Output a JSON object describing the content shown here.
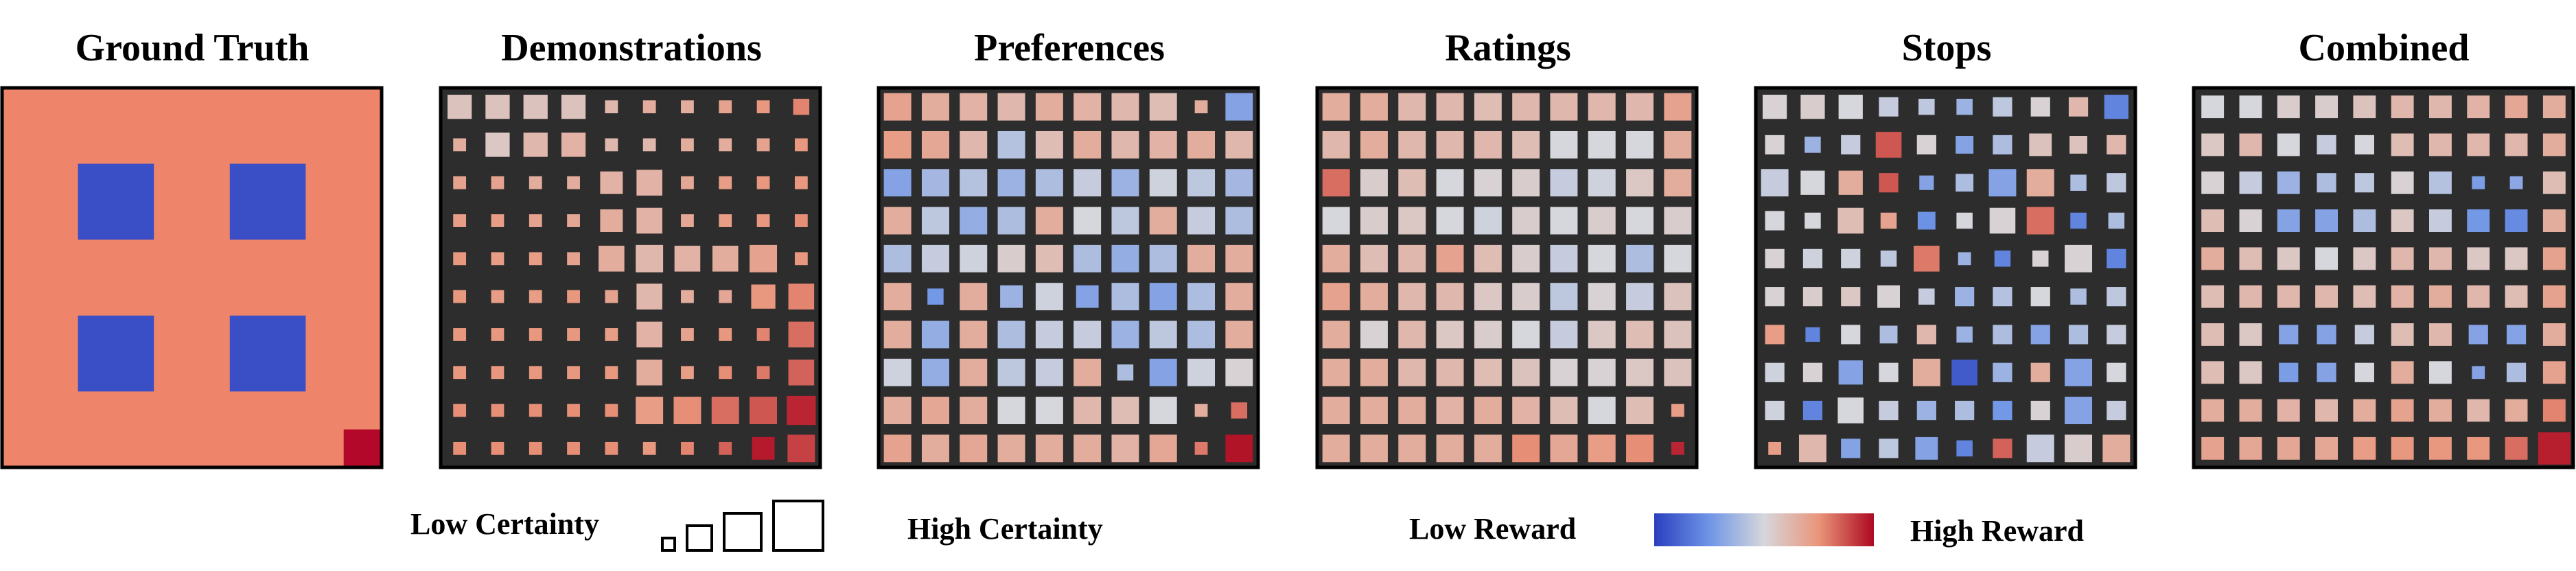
{
  "panels": [
    {
      "title": "Ground Truth",
      "type": "ground_truth",
      "grid": {
        "rows": 10,
        "cols": 10,
        "background_reward": 0.85,
        "low_reward_blocks": [
          {
            "rows": [
              2,
              3
            ],
            "cols": [
              2,
              3
            ],
            "reward": 0.0
          },
          {
            "rows": [
              2,
              3
            ],
            "cols": [
              6,
              7
            ],
            "reward": 0.0
          },
          {
            "rows": [
              6,
              7
            ],
            "cols": [
              2,
              3
            ],
            "reward": 0.0
          },
          {
            "rows": [
              6,
              7
            ],
            "cols": [
              6,
              7
            ],
            "reward": 0.0
          }
        ],
        "high_reward_cells": [
          {
            "row": 9,
            "col": 9,
            "reward": 1.0
          }
        ]
      }
    },
    {
      "title": "Demonstrations",
      "type": "estimate",
      "reward": [
        [
          0.58,
          0.58,
          0.58,
          0.58,
          0.62,
          0.66,
          0.66,
          0.7,
          0.74,
          0.78
        ],
        [
          0.66,
          0.56,
          0.62,
          0.64,
          0.62,
          0.62,
          0.66,
          0.66,
          0.7,
          0.74
        ],
        [
          0.7,
          0.7,
          0.66,
          0.66,
          0.64,
          0.64,
          0.68,
          0.72,
          0.74,
          0.74
        ],
        [
          0.72,
          0.72,
          0.7,
          0.68,
          0.66,
          0.64,
          0.68,
          0.72,
          0.74,
          0.76
        ],
        [
          0.74,
          0.72,
          0.72,
          0.7,
          0.66,
          0.62,
          0.64,
          0.66,
          0.7,
          0.74
        ],
        [
          0.74,
          0.72,
          0.72,
          0.74,
          0.7,
          0.62,
          0.66,
          0.68,
          0.74,
          0.78
        ],
        [
          0.74,
          0.74,
          0.74,
          0.74,
          0.72,
          0.64,
          0.7,
          0.74,
          0.78,
          0.82
        ],
        [
          0.74,
          0.74,
          0.74,
          0.74,
          0.74,
          0.66,
          0.72,
          0.76,
          0.8,
          0.84
        ],
        [
          0.76,
          0.76,
          0.76,
          0.76,
          0.76,
          0.72,
          0.76,
          0.82,
          0.86,
          0.95
        ],
        [
          0.76,
          0.76,
          0.76,
          0.76,
          0.76,
          0.74,
          0.78,
          0.84,
          0.97,
          0.9
        ]
      ],
      "certainty": [
        [
          0.75,
          0.75,
          0.75,
          0.75,
          0.4,
          0.4,
          0.4,
          0.4,
          0.4,
          0.5
        ],
        [
          0.4,
          0.75,
          0.75,
          0.75,
          0.4,
          0.4,
          0.4,
          0.4,
          0.4,
          0.4
        ],
        [
          0.4,
          0.4,
          0.4,
          0.4,
          0.7,
          0.8,
          0.4,
          0.4,
          0.4,
          0.4
        ],
        [
          0.4,
          0.4,
          0.4,
          0.4,
          0.7,
          0.8,
          0.4,
          0.4,
          0.4,
          0.4
        ],
        [
          0.4,
          0.4,
          0.4,
          0.4,
          0.8,
          0.85,
          0.8,
          0.8,
          0.85,
          0.4
        ],
        [
          0.4,
          0.4,
          0.4,
          0.4,
          0.4,
          0.8,
          0.4,
          0.4,
          0.75,
          0.8
        ],
        [
          0.4,
          0.4,
          0.4,
          0.4,
          0.4,
          0.8,
          0.4,
          0.4,
          0.4,
          0.8
        ],
        [
          0.4,
          0.4,
          0.4,
          0.4,
          0.4,
          0.8,
          0.4,
          0.4,
          0.4,
          0.8
        ],
        [
          0.4,
          0.4,
          0.4,
          0.4,
          0.4,
          0.85,
          0.85,
          0.85,
          0.85,
          0.9
        ],
        [
          0.4,
          0.4,
          0.4,
          0.4,
          0.4,
          0.4,
          0.4,
          0.4,
          0.7,
          0.85
        ]
      ]
    },
    {
      "title": "Preferences",
      "type": "estimate",
      "reward": [
        [
          0.7,
          0.66,
          0.64,
          0.62,
          0.66,
          0.64,
          0.62,
          0.6,
          0.66,
          0.3
        ],
        [
          0.72,
          0.68,
          0.62,
          0.42,
          0.6,
          0.66,
          0.62,
          0.64,
          0.66,
          0.62
        ],
        [
          0.3,
          0.38,
          0.42,
          0.36,
          0.4,
          0.46,
          0.36,
          0.48,
          0.44,
          0.38
        ],
        [
          0.66,
          0.44,
          0.34,
          0.4,
          0.66,
          0.5,
          0.44,
          0.66,
          0.46,
          0.4
        ],
        [
          0.4,
          0.46,
          0.48,
          0.54,
          0.6,
          0.4,
          0.34,
          0.4,
          0.66,
          0.66
        ],
        [
          0.66,
          0.26,
          0.66,
          0.36,
          0.48,
          0.3,
          0.4,
          0.3,
          0.4,
          0.66
        ],
        [
          0.66,
          0.34,
          0.66,
          0.4,
          0.46,
          0.46,
          0.36,
          0.44,
          0.4,
          0.66
        ],
        [
          0.48,
          0.34,
          0.66,
          0.44,
          0.46,
          0.66,
          0.4,
          0.3,
          0.48,
          0.52
        ],
        [
          0.66,
          0.68,
          0.66,
          0.5,
          0.5,
          0.62,
          0.6,
          0.5,
          0.66,
          0.82
        ],
        [
          0.7,
          0.66,
          0.68,
          0.66,
          0.66,
          0.66,
          0.64,
          0.68,
          0.8,
          0.98
        ]
      ],
      "certainty": [
        [
          0.85,
          0.85,
          0.85,
          0.85,
          0.85,
          0.85,
          0.85,
          0.85,
          0.4,
          0.85
        ],
        [
          0.85,
          0.85,
          0.85,
          0.85,
          0.85,
          0.85,
          0.85,
          0.85,
          0.85,
          0.85
        ],
        [
          0.85,
          0.85,
          0.85,
          0.85,
          0.85,
          0.85,
          0.85,
          0.85,
          0.85,
          0.85
        ],
        [
          0.85,
          0.85,
          0.85,
          0.85,
          0.85,
          0.85,
          0.85,
          0.85,
          0.85,
          0.85
        ],
        [
          0.85,
          0.85,
          0.85,
          0.85,
          0.85,
          0.85,
          0.85,
          0.85,
          0.85,
          0.85
        ],
        [
          0.85,
          0.5,
          0.85,
          0.7,
          0.85,
          0.7,
          0.85,
          0.85,
          0.85,
          0.85
        ],
        [
          0.85,
          0.85,
          0.85,
          0.85,
          0.85,
          0.85,
          0.85,
          0.85,
          0.85,
          0.85
        ],
        [
          0.85,
          0.85,
          0.85,
          0.85,
          0.85,
          0.85,
          0.5,
          0.85,
          0.85,
          0.85
        ],
        [
          0.85,
          0.85,
          0.85,
          0.85,
          0.85,
          0.85,
          0.85,
          0.85,
          0.4,
          0.5
        ],
        [
          0.85,
          0.85,
          0.85,
          0.85,
          0.85,
          0.85,
          0.85,
          0.85,
          0.4,
          0.85
        ]
      ]
    },
    {
      "title": "Ratings",
      "type": "estimate",
      "reward": [
        [
          0.66,
          0.66,
          0.62,
          0.62,
          0.6,
          0.62,
          0.62,
          0.62,
          0.62,
          0.7
        ],
        [
          0.62,
          0.66,
          0.62,
          0.62,
          0.62,
          0.6,
          0.5,
          0.5,
          0.5,
          0.66
        ],
        [
          0.82,
          0.54,
          0.6,
          0.5,
          0.52,
          0.54,
          0.46,
          0.48,
          0.56,
          0.66
        ],
        [
          0.5,
          0.54,
          0.56,
          0.5,
          0.48,
          0.54,
          0.5,
          0.54,
          0.5,
          0.54
        ],
        [
          0.66,
          0.6,
          0.62,
          0.7,
          0.6,
          0.54,
          0.46,
          0.5,
          0.4,
          0.5
        ],
        [
          0.7,
          0.66,
          0.62,
          0.62,
          0.56,
          0.54,
          0.44,
          0.52,
          0.46,
          0.58
        ],
        [
          0.66,
          0.52,
          0.62,
          0.56,
          0.54,
          0.5,
          0.46,
          0.56,
          0.6,
          0.58
        ],
        [
          0.66,
          0.66,
          0.62,
          0.62,
          0.6,
          0.58,
          0.52,
          0.52,
          0.56,
          0.58
        ],
        [
          0.66,
          0.66,
          0.66,
          0.64,
          0.66,
          0.64,
          0.6,
          0.5,
          0.6,
          0.72
        ],
        [
          0.66,
          0.66,
          0.66,
          0.66,
          0.66,
          0.76,
          0.68,
          0.72,
          0.76,
          0.95
        ]
      ],
      "certainty": [
        [
          0.85,
          0.85,
          0.85,
          0.85,
          0.85,
          0.85,
          0.85,
          0.85,
          0.85,
          0.85
        ],
        [
          0.85,
          0.85,
          0.85,
          0.85,
          0.85,
          0.85,
          0.85,
          0.85,
          0.85,
          0.85
        ],
        [
          0.85,
          0.85,
          0.85,
          0.85,
          0.85,
          0.85,
          0.85,
          0.85,
          0.85,
          0.85
        ],
        [
          0.85,
          0.85,
          0.85,
          0.85,
          0.85,
          0.85,
          0.85,
          0.85,
          0.85,
          0.85
        ],
        [
          0.85,
          0.85,
          0.85,
          0.85,
          0.85,
          0.85,
          0.85,
          0.85,
          0.85,
          0.85
        ],
        [
          0.85,
          0.85,
          0.85,
          0.85,
          0.85,
          0.85,
          0.85,
          0.85,
          0.85,
          0.85
        ],
        [
          0.85,
          0.85,
          0.85,
          0.85,
          0.85,
          0.85,
          0.85,
          0.85,
          0.85,
          0.85
        ],
        [
          0.85,
          0.85,
          0.85,
          0.85,
          0.85,
          0.85,
          0.85,
          0.85,
          0.85,
          0.85
        ],
        [
          0.85,
          0.85,
          0.85,
          0.85,
          0.85,
          0.85,
          0.85,
          0.85,
          0.85,
          0.4
        ],
        [
          0.85,
          0.85,
          0.85,
          0.85,
          0.85,
          0.85,
          0.85,
          0.85,
          0.85,
          0.4
        ]
      ]
    },
    {
      "title": "Stops",
      "type": "estimate",
      "reward": [
        [
          0.52,
          0.54,
          0.5,
          0.46,
          0.44,
          0.36,
          0.44,
          0.52,
          0.62,
          0.2
        ],
        [
          0.52,
          0.36,
          0.46,
          0.86,
          0.52,
          0.3,
          0.4,
          0.58,
          0.58,
          0.62
        ],
        [
          0.46,
          0.5,
          0.66,
          0.86,
          0.3,
          0.4,
          0.3,
          0.66,
          0.4,
          0.44
        ],
        [
          0.5,
          0.5,
          0.6,
          0.7,
          0.24,
          0.5,
          0.52,
          0.82,
          0.2,
          0.4
        ],
        [
          0.52,
          0.48,
          0.48,
          0.44,
          0.8,
          0.36,
          0.2,
          0.52,
          0.52,
          0.2
        ],
        [
          0.52,
          0.54,
          0.56,
          0.52,
          0.46,
          0.36,
          0.42,
          0.5,
          0.4,
          0.44
        ],
        [
          0.72,
          0.2,
          0.5,
          0.4,
          0.62,
          0.36,
          0.4,
          0.3,
          0.4,
          0.46
        ],
        [
          0.48,
          0.52,
          0.3,
          0.5,
          0.66,
          0.08,
          0.36,
          0.66,
          0.3,
          0.5
        ],
        [
          0.48,
          0.2,
          0.5,
          0.46,
          0.36,
          0.4,
          0.26,
          0.52,
          0.3,
          0.46
        ],
        [
          0.72,
          0.62,
          0.3,
          0.44,
          0.3,
          0.2,
          0.84,
          0.46,
          0.54,
          0.66
        ]
      ],
      "certainty": [
        [
          0.75,
          0.75,
          0.75,
          0.6,
          0.5,
          0.5,
          0.6,
          0.6,
          0.6,
          0.75
        ],
        [
          0.6,
          0.5,
          0.6,
          0.8,
          0.6,
          0.55,
          0.6,
          0.7,
          0.55,
          0.6
        ],
        [
          0.85,
          0.75,
          0.75,
          0.6,
          0.45,
          0.55,
          0.85,
          0.85,
          0.5,
          0.6
        ],
        [
          0.6,
          0.5,
          0.8,
          0.5,
          0.55,
          0.5,
          0.8,
          0.85,
          0.5,
          0.5
        ],
        [
          0.6,
          0.6,
          0.6,
          0.5,
          0.8,
          0.4,
          0.5,
          0.5,
          0.85,
          0.6
        ],
        [
          0.6,
          0.6,
          0.6,
          0.7,
          0.5,
          0.6,
          0.6,
          0.6,
          0.5,
          0.6
        ],
        [
          0.6,
          0.45,
          0.6,
          0.55,
          0.6,
          0.5,
          0.6,
          0.6,
          0.6,
          0.6
        ],
        [
          0.6,
          0.6,
          0.75,
          0.6,
          0.85,
          0.8,
          0.6,
          0.6,
          0.85,
          0.6
        ],
        [
          0.6,
          0.6,
          0.8,
          0.6,
          0.6,
          0.6,
          0.6,
          0.6,
          0.85,
          0.6
        ],
        [
          0.4,
          0.85,
          0.6,
          0.6,
          0.7,
          0.5,
          0.6,
          0.85,
          0.85,
          0.85
        ]
      ]
    },
    {
      "title": "Combined",
      "type": "estimate",
      "reward": [
        [
          0.5,
          0.5,
          0.54,
          0.54,
          0.58,
          0.62,
          0.62,
          0.64,
          0.68,
          0.66
        ],
        [
          0.56,
          0.62,
          0.5,
          0.46,
          0.5,
          0.6,
          0.62,
          0.62,
          0.62,
          0.66
        ],
        [
          0.52,
          0.46,
          0.36,
          0.4,
          0.44,
          0.52,
          0.42,
          0.28,
          0.32,
          0.6
        ],
        [
          0.6,
          0.52,
          0.3,
          0.3,
          0.4,
          0.56,
          0.46,
          0.26,
          0.22,
          0.66
        ],
        [
          0.66,
          0.6,
          0.56,
          0.5,
          0.56,
          0.62,
          0.62,
          0.56,
          0.56,
          0.7
        ],
        [
          0.6,
          0.62,
          0.62,
          0.62,
          0.6,
          0.64,
          0.66,
          0.62,
          0.6,
          0.7
        ],
        [
          0.6,
          0.56,
          0.3,
          0.3,
          0.46,
          0.6,
          0.62,
          0.3,
          0.3,
          0.66
        ],
        [
          0.6,
          0.56,
          0.28,
          0.3,
          0.5,
          0.66,
          0.5,
          0.3,
          0.4,
          0.7
        ],
        [
          0.66,
          0.66,
          0.64,
          0.62,
          0.66,
          0.7,
          0.66,
          0.62,
          0.66,
          0.78
        ],
        [
          0.7,
          0.68,
          0.68,
          0.68,
          0.72,
          0.74,
          0.74,
          0.74,
          0.82,
          0.96
        ]
      ],
      "certainty": [
        [
          0.7,
          0.7,
          0.7,
          0.7,
          0.7,
          0.7,
          0.7,
          0.7,
          0.7,
          0.7
        ],
        [
          0.7,
          0.7,
          0.7,
          0.6,
          0.6,
          0.7,
          0.7,
          0.7,
          0.7,
          0.7
        ],
        [
          0.7,
          0.7,
          0.7,
          0.6,
          0.6,
          0.7,
          0.7,
          0.4,
          0.4,
          0.7
        ],
        [
          0.7,
          0.7,
          0.7,
          0.7,
          0.7,
          0.7,
          0.7,
          0.7,
          0.7,
          0.7
        ],
        [
          0.7,
          0.7,
          0.7,
          0.7,
          0.7,
          0.7,
          0.7,
          0.7,
          0.7,
          0.7
        ],
        [
          0.7,
          0.7,
          0.7,
          0.7,
          0.7,
          0.7,
          0.7,
          0.7,
          0.7,
          0.7
        ],
        [
          0.7,
          0.7,
          0.6,
          0.6,
          0.6,
          0.7,
          0.7,
          0.6,
          0.6,
          0.7
        ],
        [
          0.7,
          0.7,
          0.6,
          0.6,
          0.6,
          0.7,
          0.7,
          0.4,
          0.6,
          0.7
        ],
        [
          0.7,
          0.7,
          0.7,
          0.7,
          0.7,
          0.7,
          0.7,
          0.7,
          0.7,
          0.7
        ],
        [
          0.7,
          0.7,
          0.7,
          0.7,
          0.7,
          0.7,
          0.7,
          0.7,
          0.7,
          1.0
        ]
      ]
    }
  ],
  "legend": {
    "certainty": {
      "low_label": "Low Certainty",
      "high_label": "High Certainty",
      "example_levels": [
        0.25,
        0.5,
        0.75,
        1.0
      ]
    },
    "reward": {
      "low_label": "Low Reward",
      "high_label": "High Reward",
      "colormap": [
        "#2b3fbf",
        "#6f95e6",
        "#d6d7dc",
        "#e9957a",
        "#ad0920"
      ]
    }
  },
  "colors": {
    "panel_background": "#2d2d2d",
    "panel_border": "#000000",
    "ground_truth_background": "#ee8469",
    "ground_truth_low": "#3a4ec6",
    "ground_truth_high": "#b3082a"
  }
}
